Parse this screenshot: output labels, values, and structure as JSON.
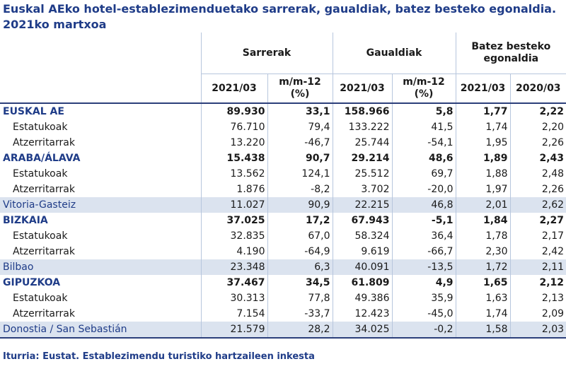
{
  "title": "Euskal AEko hotel-establezimenduetako sarrerak, gaualdiak, batez besteko egonaldia. 2021ko martxoa",
  "headers": {
    "group": [
      "Sarrerak",
      "Gaualdiak",
      "Batez besteko egonaldia"
    ],
    "sub": [
      "2021/03",
      "m/m-12 (%)",
      "2021/03",
      "m/m-12 (%)",
      "2021/03",
      "2020/03"
    ]
  },
  "rows": [
    {
      "label": "EUSKAL AE",
      "type": "bold",
      "values": [
        "89.930",
        "33,1",
        "158.966",
        "5,8",
        "1,77",
        "2,22"
      ]
    },
    {
      "label": "Estatukoak",
      "type": "sub",
      "values": [
        "76.710",
        "79,4",
        "133.222",
        "41,5",
        "1,74",
        "2,20"
      ]
    },
    {
      "label": "Atzerritarrak",
      "type": "sub",
      "values": [
        "13.220",
        "-46,7",
        "25.744",
        "-54,1",
        "1,95",
        "2,26"
      ]
    },
    {
      "label": "ARABA/ÁLAVA",
      "type": "bold",
      "values": [
        "15.438",
        "90,7",
        "29.214",
        "48,6",
        "1,89",
        "2,43"
      ]
    },
    {
      "label": "Estatukoak",
      "type": "sub",
      "values": [
        "13.562",
        "124,1",
        "25.512",
        "69,7",
        "1,88",
        "2,48"
      ]
    },
    {
      "label": "Atzerritarrak",
      "type": "sub",
      "values": [
        "1.876",
        "-8,2",
        "3.702",
        "-20,0",
        "1,97",
        "2,26"
      ]
    },
    {
      "label": "Vitoria-Gasteiz",
      "type": "city",
      "values": [
        "11.027",
        "90,9",
        "22.215",
        "46,8",
        "2,01",
        "2,62"
      ]
    },
    {
      "label": "BIZKAIA",
      "type": "bold",
      "values": [
        "37.025",
        "17,2",
        "67.943",
        "-5,1",
        "1,84",
        "2,27"
      ]
    },
    {
      "label": "Estatukoak",
      "type": "sub",
      "values": [
        "32.835",
        "67,0",
        "58.324",
        "36,4",
        "1,78",
        "2,17"
      ]
    },
    {
      "label": "Atzerritarrak",
      "type": "sub",
      "values": [
        "4.190",
        "-64,9",
        "9.619",
        "-66,7",
        "2,30",
        "2,42"
      ]
    },
    {
      "label": "Bilbao",
      "type": "city",
      "values": [
        "23.348",
        "6,3",
        "40.091",
        "-13,5",
        "1,72",
        "2,11"
      ]
    },
    {
      "label": "GIPUZKOA",
      "type": "bold",
      "values": [
        "37.467",
        "34,5",
        "61.809",
        "4,9",
        "1,65",
        "2,12"
      ]
    },
    {
      "label": "Estatukoak",
      "type": "sub",
      "values": [
        "30.313",
        "77,8",
        "49.386",
        "35,9",
        "1,63",
        "2,13"
      ]
    },
    {
      "label": "Atzerritarrak",
      "type": "sub",
      "values": [
        "7.154",
        "-33,7",
        "12.423",
        "-45,0",
        "1,74",
        "2,09"
      ]
    },
    {
      "label": "Donostia / San Sebastián",
      "type": "city",
      "values": [
        "21.579",
        "28,2",
        "34.025",
        "-0,2",
        "1,58",
        "2,03"
      ]
    }
  ],
  "source": "Iturria: Eustat. Establezimendu turistiko hartzaileen inkesta"
}
